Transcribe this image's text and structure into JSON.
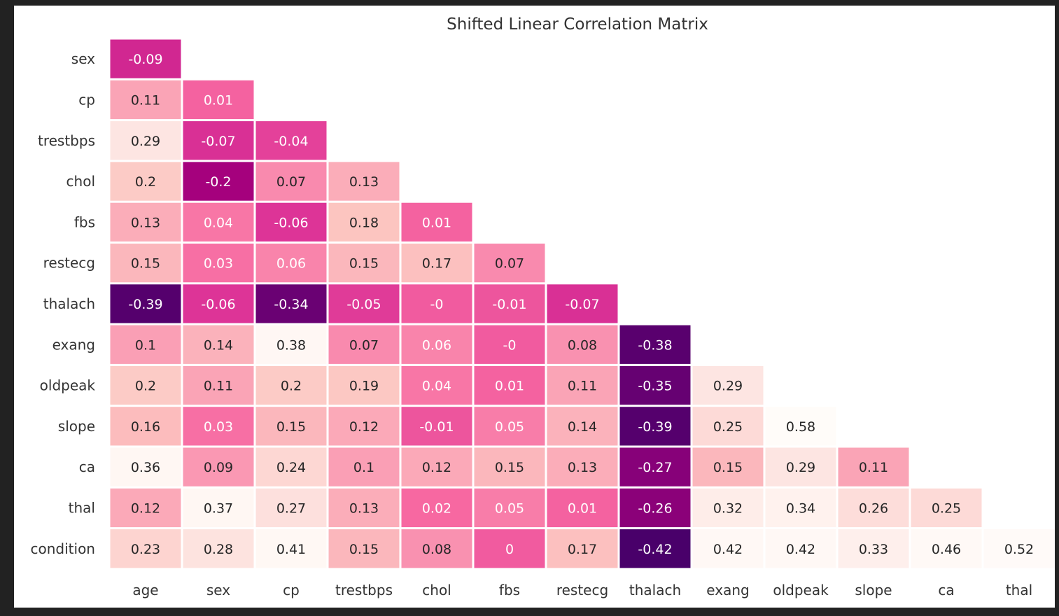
{
  "chart_data": {
    "type": "heatmap",
    "title": "Shifted Linear Correlation Matrix",
    "x_categories": [
      "age",
      "sex",
      "cp",
      "trestbps",
      "chol",
      "fbs",
      "restecg",
      "thalach",
      "exang",
      "oldpeak",
      "slope",
      "ca",
      "thal"
    ],
    "y_categories": [
      "sex",
      "cp",
      "trestbps",
      "chol",
      "fbs",
      "restecg",
      "thalach",
      "exang",
      "oldpeak",
      "slope",
      "ca",
      "thal",
      "condition"
    ],
    "values": [
      [
        "-0.09"
      ],
      [
        "0.11",
        "0.01"
      ],
      [
        "0.29",
        "-0.07",
        "-0.04"
      ],
      [
        "0.2",
        "-0.2",
        "0.07",
        "0.13"
      ],
      [
        "0.13",
        "0.04",
        "-0.06",
        "0.18",
        "0.01"
      ],
      [
        "0.15",
        "0.03",
        "0.06",
        "0.15",
        "0.17",
        "0.07"
      ],
      [
        "-0.39",
        "-0.06",
        "-0.34",
        "-0.05",
        "-0",
        "-0.01",
        "-0.07"
      ],
      [
        "0.1",
        "0.14",
        "0.38",
        "0.07",
        "0.06",
        "-0",
        "0.08",
        "-0.38"
      ],
      [
        "0.2",
        "0.11",
        "0.2",
        "0.19",
        "0.04",
        "0.01",
        "0.11",
        "-0.35",
        "0.29"
      ],
      [
        "0.16",
        "0.03",
        "0.15",
        "0.12",
        "-0.01",
        "0.05",
        "0.14",
        "-0.39",
        "0.25",
        "0.58"
      ],
      [
        "0.36",
        "0.09",
        "0.24",
        "0.1",
        "0.12",
        "0.15",
        "0.13",
        "-0.27",
        "0.15",
        "0.29",
        "0.11"
      ],
      [
        "0.12",
        "0.37",
        "0.27",
        "0.13",
        "0.02",
        "0.05",
        "0.01",
        "-0.26",
        "0.32",
        "0.34",
        "0.26",
        "0.25"
      ],
      [
        "0.23",
        "0.28",
        "0.41",
        "0.15",
        "0.08",
        "0",
        "0.17",
        "-0.42",
        "0.42",
        "0.42",
        "0.33",
        "0.46",
        "0.52"
      ]
    ],
    "mask": "lower-triangle",
    "colormap": "RdPu_r",
    "grid": false,
    "legend": "none"
  }
}
